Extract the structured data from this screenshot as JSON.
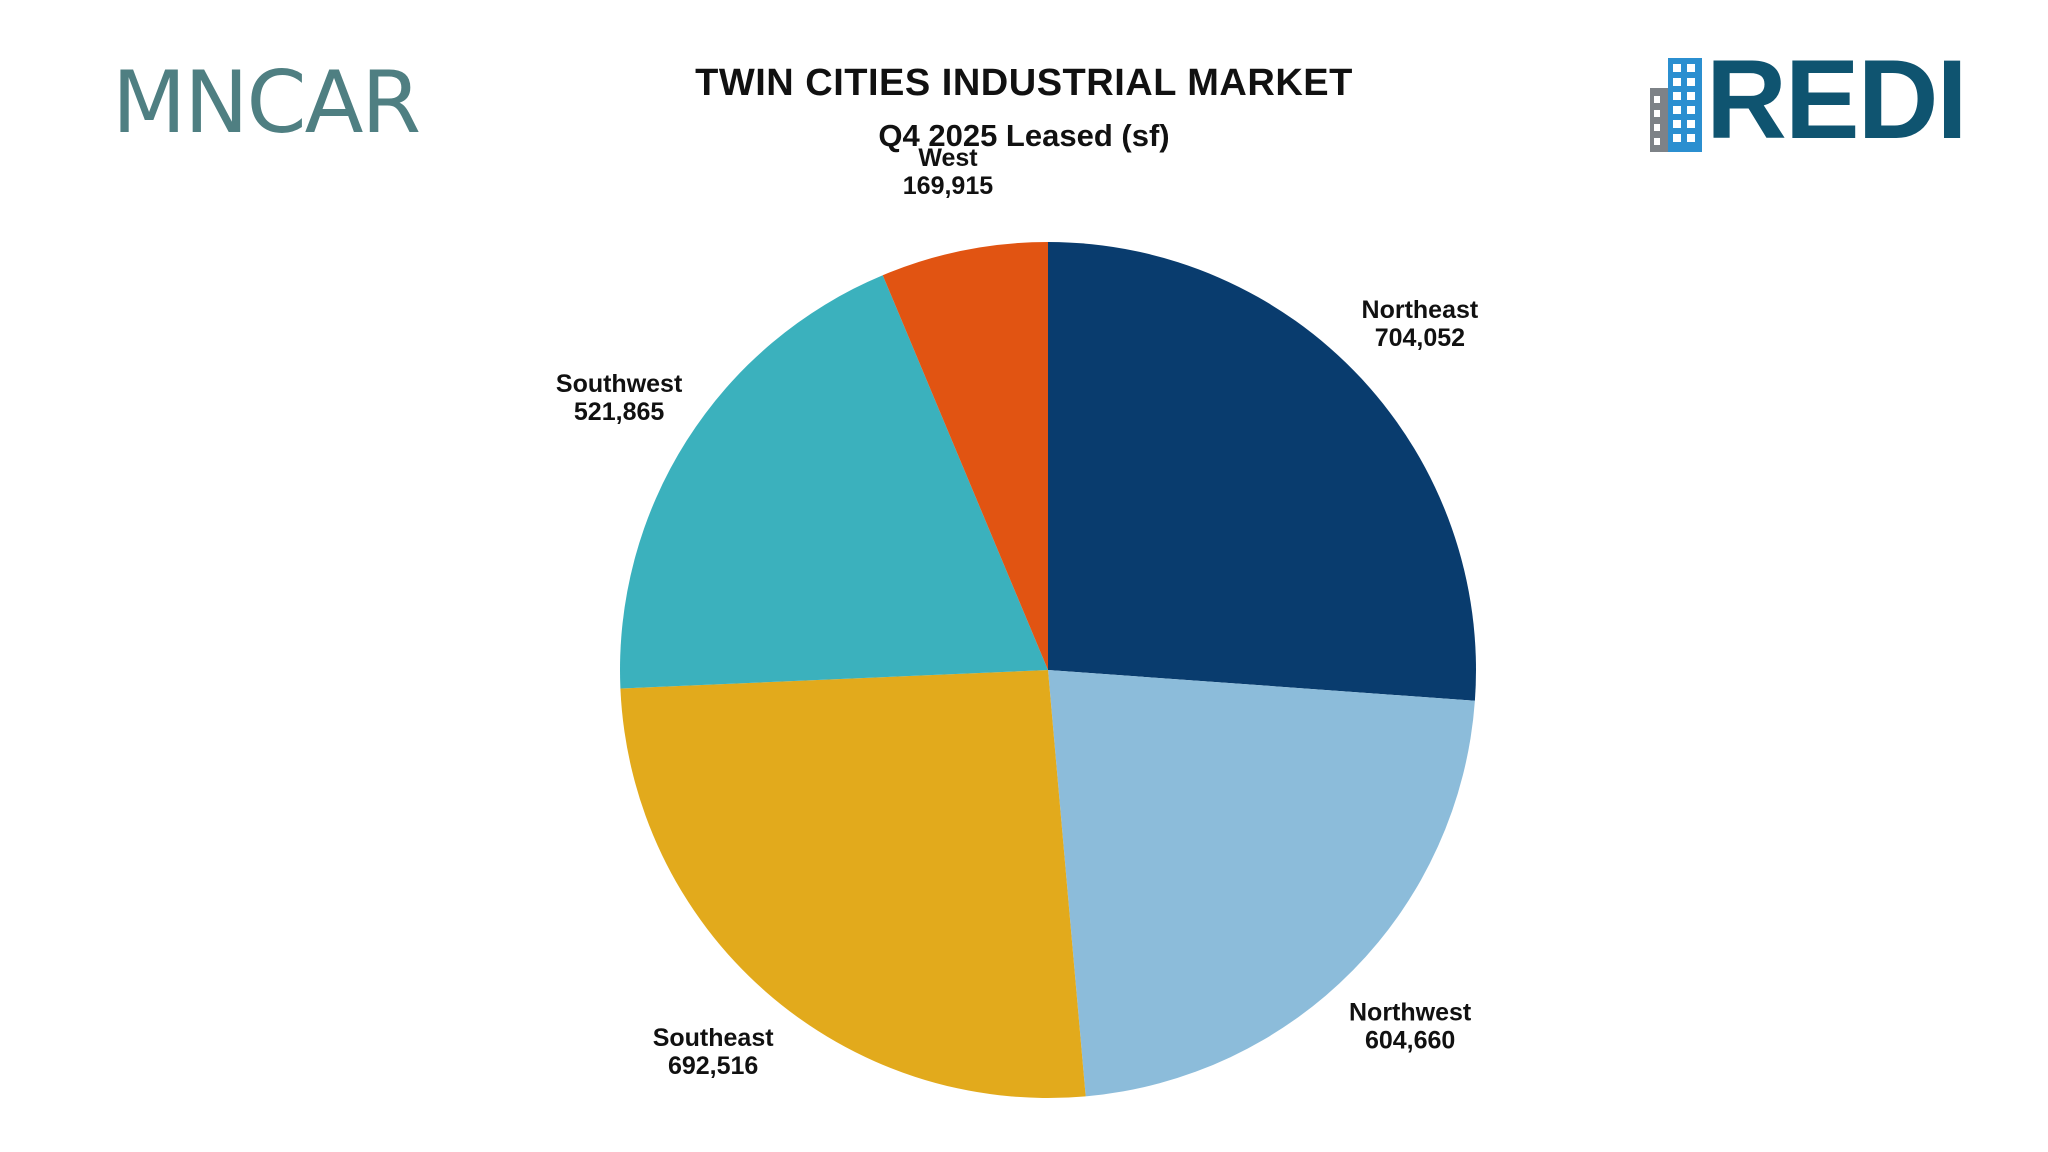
{
  "header": {
    "left_logo_text": "MNCAR",
    "right_logo_text": "REDI"
  },
  "chart_data": {
    "type": "pie",
    "title": "TWIN CITIES INDUSTRIAL MARKET",
    "subtitle": "Q4 2025 Leased (sf)",
    "start_angle_deg": 0,
    "direction": "clockwise",
    "slices": [
      {
        "label": "Northeast",
        "value": 704052,
        "value_label": "704,052",
        "color": "#093c6e"
      },
      {
        "label": "Northwest",
        "value": 604660,
        "value_label": "604,660",
        "color": "#8cbcda"
      },
      {
        "label": "Southeast",
        "value": 692516,
        "value_label": "692,516",
        "color": "#e2aa1c"
      },
      {
        "label": "Southwest",
        "value": 521865,
        "value_label": "521,865",
        "color": "#3bb1bd"
      },
      {
        "label": "West",
        "value": 169915,
        "value_label": "169,915",
        "color": "#e15412"
      }
    ]
  }
}
